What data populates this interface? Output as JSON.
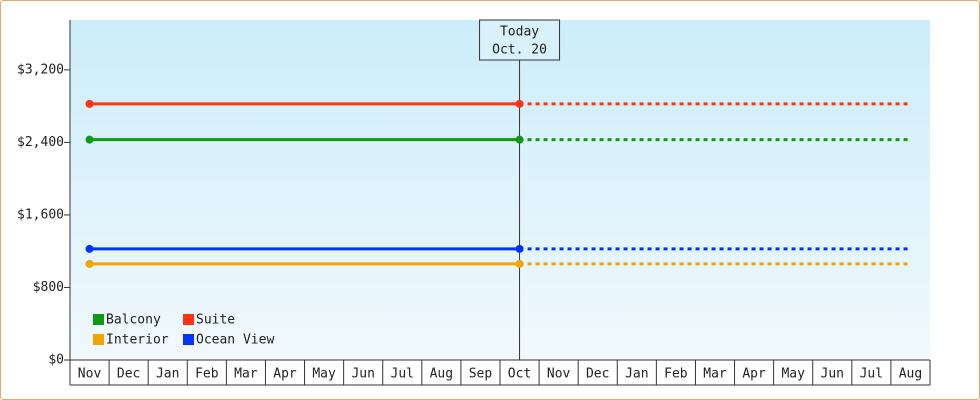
{
  "chart_data": {
    "type": "line",
    "categories": [
      "Nov",
      "Dec",
      "Jan",
      "Feb",
      "Mar",
      "Apr",
      "May",
      "Jun",
      "Jul",
      "Aug",
      "Sep",
      "Oct",
      "Nov",
      "Dec",
      "Jan",
      "Feb",
      "Mar",
      "Apr",
      "May",
      "Jun",
      "Jul",
      "Aug"
    ],
    "series": [
      {
        "name": "Balcony",
        "color": "#119911",
        "values": [
          2430,
          2430,
          2430,
          2430,
          2430,
          2430,
          2430,
          2430,
          2430,
          2430,
          2430,
          2430,
          2430,
          2430,
          2430,
          2430,
          2430,
          2430,
          2430,
          2430,
          2430,
          2430
        ]
      },
      {
        "name": "Suite",
        "color": "#ff3311",
        "values": [
          2825,
          2825,
          2825,
          2825,
          2825,
          2825,
          2825,
          2825,
          2825,
          2825,
          2825,
          2825,
          2825,
          2825,
          2825,
          2825,
          2825,
          2825,
          2825,
          2825,
          2825,
          2825
        ]
      },
      {
        "name": "Interior",
        "color": "#f2a400",
        "values": [
          1060,
          1060,
          1060,
          1060,
          1060,
          1060,
          1060,
          1060,
          1060,
          1060,
          1060,
          1060,
          1060,
          1060,
          1060,
          1060,
          1060,
          1060,
          1060,
          1060,
          1060,
          1060
        ]
      },
      {
        "name": "Ocean View",
        "color": "#0033ff",
        "values": [
          1225,
          1225,
          1225,
          1225,
          1225,
          1225,
          1225,
          1225,
          1225,
          1225,
          1225,
          1225,
          1225,
          1225,
          1225,
          1225,
          1225,
          1225,
          1225,
          1225,
          1225,
          1225
        ]
      }
    ],
    "today": {
      "index": 11,
      "label": "Today",
      "date": "Oct. 20"
    },
    "ylim": [
      0,
      3750
    ],
    "yticks": [
      {
        "value": 0,
        "label": "$0"
      },
      {
        "value": 800,
        "label": "$800"
      },
      {
        "value": 1600,
        "label": "$1,600"
      },
      {
        "value": 2400,
        "label": "$2,400"
      },
      {
        "value": 3200,
        "label": "$3,200"
      }
    ],
    "grid": false,
    "legend": "bottom-left"
  }
}
